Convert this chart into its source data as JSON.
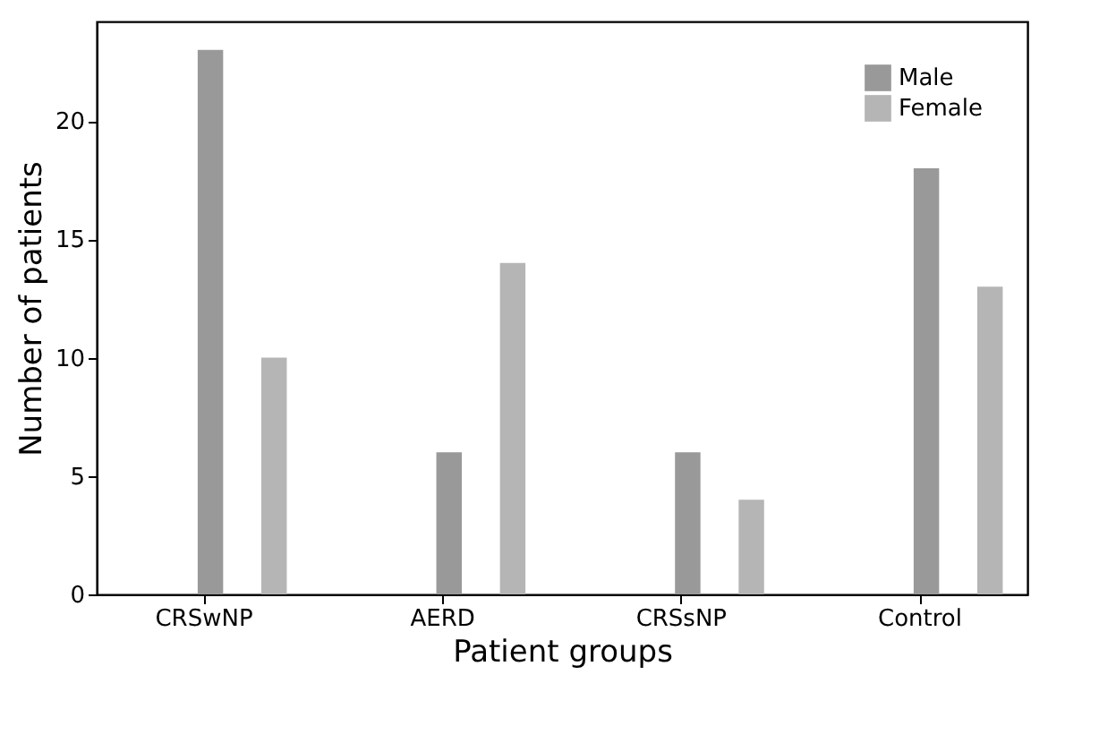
{
  "chart_data": {
    "type": "bar",
    "xlabel": "Patient groups",
    "ylabel": "Number of patients",
    "categories": [
      "CRSwNP",
      "AERD",
      "CRSsNP",
      "Control"
    ],
    "series": [
      {
        "name": "Male",
        "color": "#999999",
        "values": [
          23,
          6,
          6,
          18
        ]
      },
      {
        "name": "Female",
        "color": "#b5b5b5",
        "values": [
          10,
          14,
          4,
          13
        ]
      }
    ],
    "ylim": [
      0,
      24.2
    ],
    "yticks": [
      0,
      5,
      10,
      15,
      20
    ],
    "grid": false,
    "legend": "top right"
  }
}
